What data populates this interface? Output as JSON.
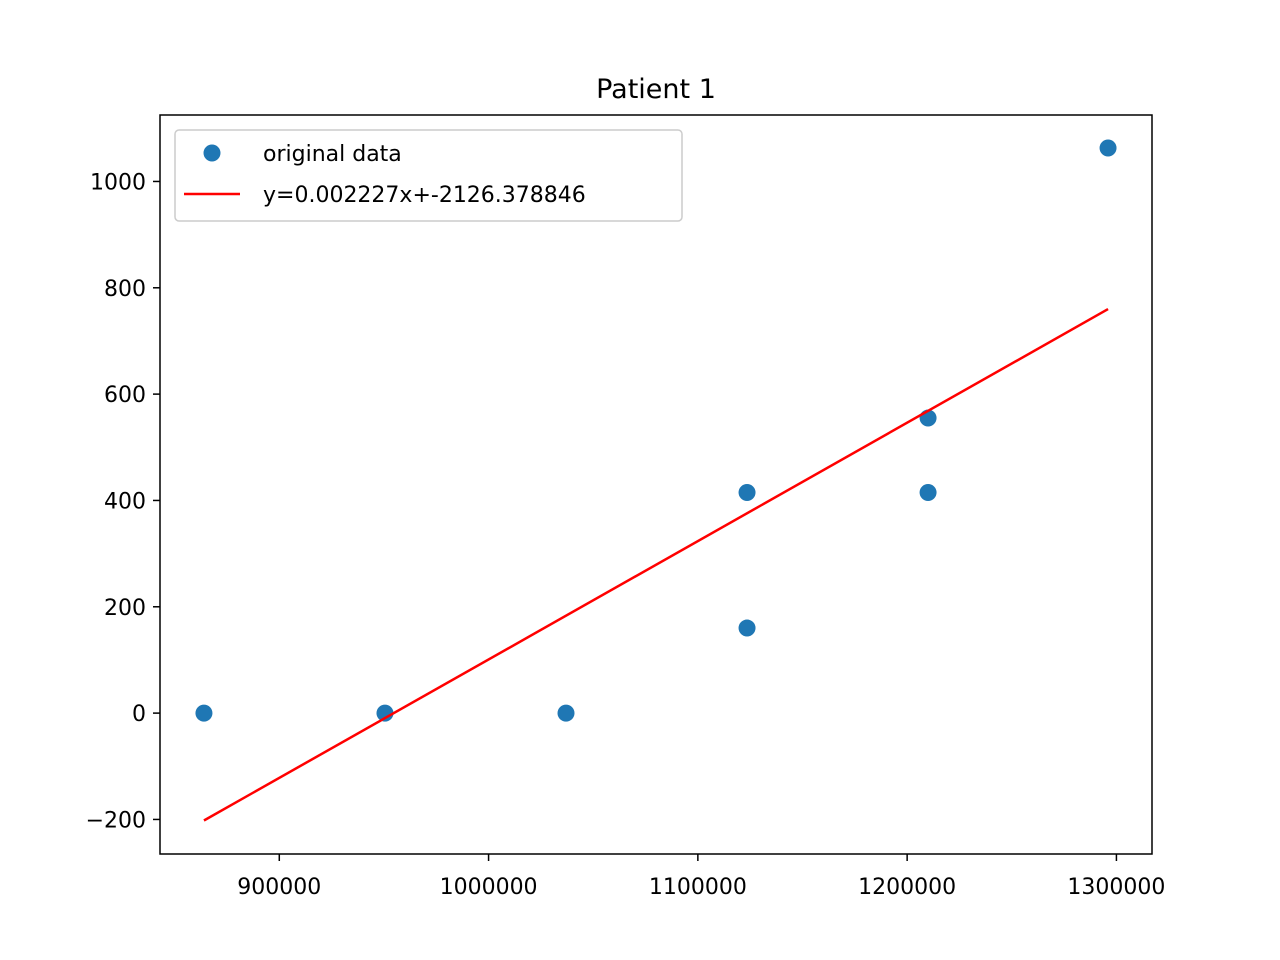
{
  "chart_data": {
    "type": "scatter",
    "title": "Patient 1",
    "xlabel": "",
    "ylabel": "",
    "xlim": [
      843000,
      1317000
    ],
    "ylim": [
      -265,
      1125
    ],
    "x_ticks": [
      900000,
      1000000,
      1100000,
      1200000,
      1300000
    ],
    "x_tick_labels": [
      "900000",
      "1000000",
      "1100000",
      "1200000",
      "1300000"
    ],
    "y_ticks": [
      -200,
      0,
      200,
      400,
      600,
      800,
      1000
    ],
    "y_tick_labels": [
      "−200",
      "0",
      "200",
      "400",
      "600",
      "800",
      "1000"
    ],
    "grid": false,
    "legend_position": "top-left",
    "series": [
      {
        "name": "original data",
        "kind": "points",
        "color": "#1f77b4",
        "x": [
          864000,
          950500,
          1037000,
          1123500,
          1123500,
          1210000,
          1210000,
          1296000
        ],
        "y": [
          0,
          0,
          0,
          415,
          160,
          415,
          555,
          1063
        ]
      },
      {
        "name": "y=0.002227x+-2126.378846",
        "kind": "line",
        "color": "#ff0000",
        "x": [
          864000,
          1296000
        ],
        "y": [
          -202,
          760
        ]
      }
    ]
  }
}
